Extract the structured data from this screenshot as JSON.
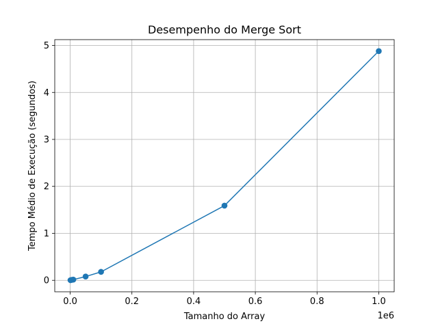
{
  "chart_data": {
    "type": "line",
    "title": "Desempenho do Merge Sort",
    "xlabel": "Tamanho do Array",
    "ylabel": "Tempo Médio de Execução (segundos)",
    "x_scale_label": "1e6",
    "xlim": [
      -50000,
      1050000
    ],
    "ylim": [
      -0.244,
      5.124
    ],
    "x_ticks": [
      0,
      200000,
      400000,
      600000,
      800000,
      1000000
    ],
    "x_tick_labels": [
      "0.0",
      "0.2",
      "0.4",
      "0.6",
      "0.8",
      "1.0"
    ],
    "y_ticks": [
      0,
      1,
      2,
      3,
      4,
      5
    ],
    "y_tick_labels": [
      "0",
      "1",
      "2",
      "3",
      "4",
      "5"
    ],
    "grid": true,
    "series": [
      {
        "color": "#1f77b4",
        "marker": "circle",
        "x": [
          1000,
          5000,
          10000,
          50000,
          100000,
          500000,
          1000000
        ],
        "y": [
          0.003,
          0.01,
          0.015,
          0.08,
          0.18,
          1.59,
          4.88
        ]
      }
    ]
  }
}
